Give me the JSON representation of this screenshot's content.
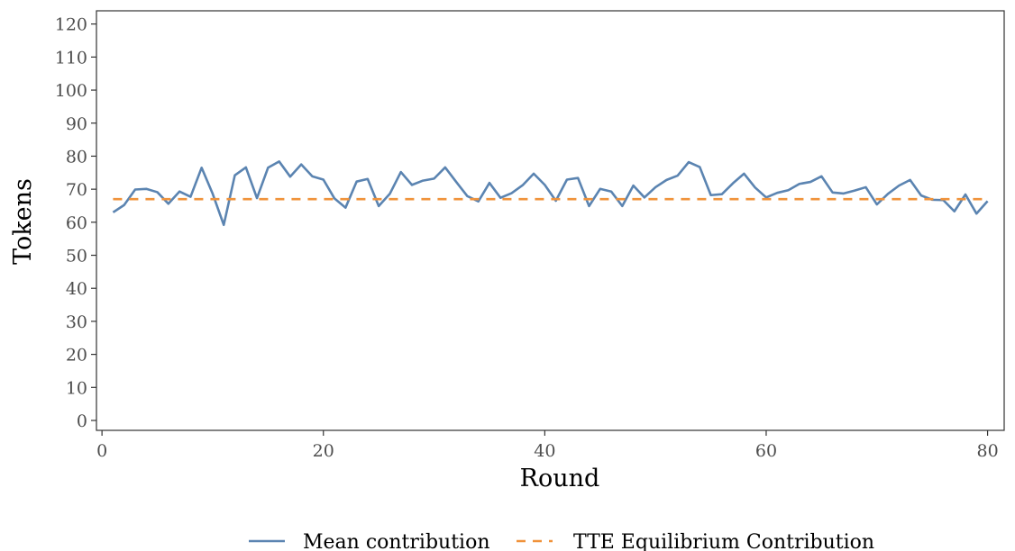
{
  "chart_data": {
    "type": "line",
    "title": "",
    "xlabel": "Round",
    "ylabel": "Tokens",
    "xlim": [
      -0.5,
      81.5
    ],
    "ylim": [
      -3,
      124
    ],
    "xticks": [
      0,
      20,
      40,
      60,
      80
    ],
    "yticks": [
      0,
      10,
      20,
      30,
      40,
      50,
      60,
      70,
      80,
      90,
      100,
      110,
      120
    ],
    "grid": false,
    "legend_position": "bottom",
    "series": [
      {
        "name": "Mean contribution",
        "color": "#5b84b1",
        "style": "solid",
        "x": [
          1,
          2,
          3,
          4,
          5,
          6,
          7,
          8,
          9,
          10,
          11,
          12,
          13,
          14,
          15,
          16,
          17,
          18,
          19,
          20,
          21,
          22,
          23,
          24,
          25,
          26,
          27,
          28,
          29,
          30,
          31,
          32,
          33,
          34,
          35,
          36,
          37,
          38,
          39,
          40,
          41,
          42,
          43,
          44,
          45,
          46,
          47,
          48,
          49,
          50,
          51,
          52,
          53,
          54,
          55,
          56,
          57,
          58,
          59,
          60,
          61,
          62,
          63,
          64,
          65,
          66,
          67,
          68,
          69,
          70,
          71,
          72,
          73,
          74,
          75,
          76,
          77,
          78,
          79,
          80
        ],
        "values": [
          63,
          65.2,
          69.9,
          70.1,
          69.1,
          65.6,
          69.3,
          67.7,
          76.5,
          68.6,
          59.2,
          74.2,
          76.6,
          67.3,
          76.5,
          78.4,
          73.8,
          77.5,
          73.9,
          72.9,
          67.2,
          64.4,
          72.3,
          73.1,
          64.9,
          68.6,
          75.2,
          71.3,
          72.6,
          73.2,
          76.6,
          72.2,
          67.9,
          66.3,
          71.9,
          67.4,
          68.8,
          71.2,
          74.7,
          71.3,
          66.5,
          72.9,
          73.4,
          64.9,
          70.1,
          69.3,
          64.9,
          71.1,
          67.5,
          70.6,
          72.8,
          74.1,
          78.2,
          76.7,
          68.2,
          68.5,
          71.8,
          74.7,
          70.5,
          67.5,
          68.9,
          69.7,
          71.6,
          72.2,
          73.9,
          69,
          68.7,
          69.6,
          70.6,
          65.4,
          68.6,
          71.1,
          72.8,
          68.1,
          66.8,
          66.7,
          63.3,
          68.4,
          62.6,
          66.4
        ]
      },
      {
        "name": "TTE Equilibrium Contribution",
        "color": "#f0923a",
        "style": "dashed",
        "x": [
          1,
          80
        ],
        "values": [
          67,
          67
        ]
      }
    ]
  }
}
